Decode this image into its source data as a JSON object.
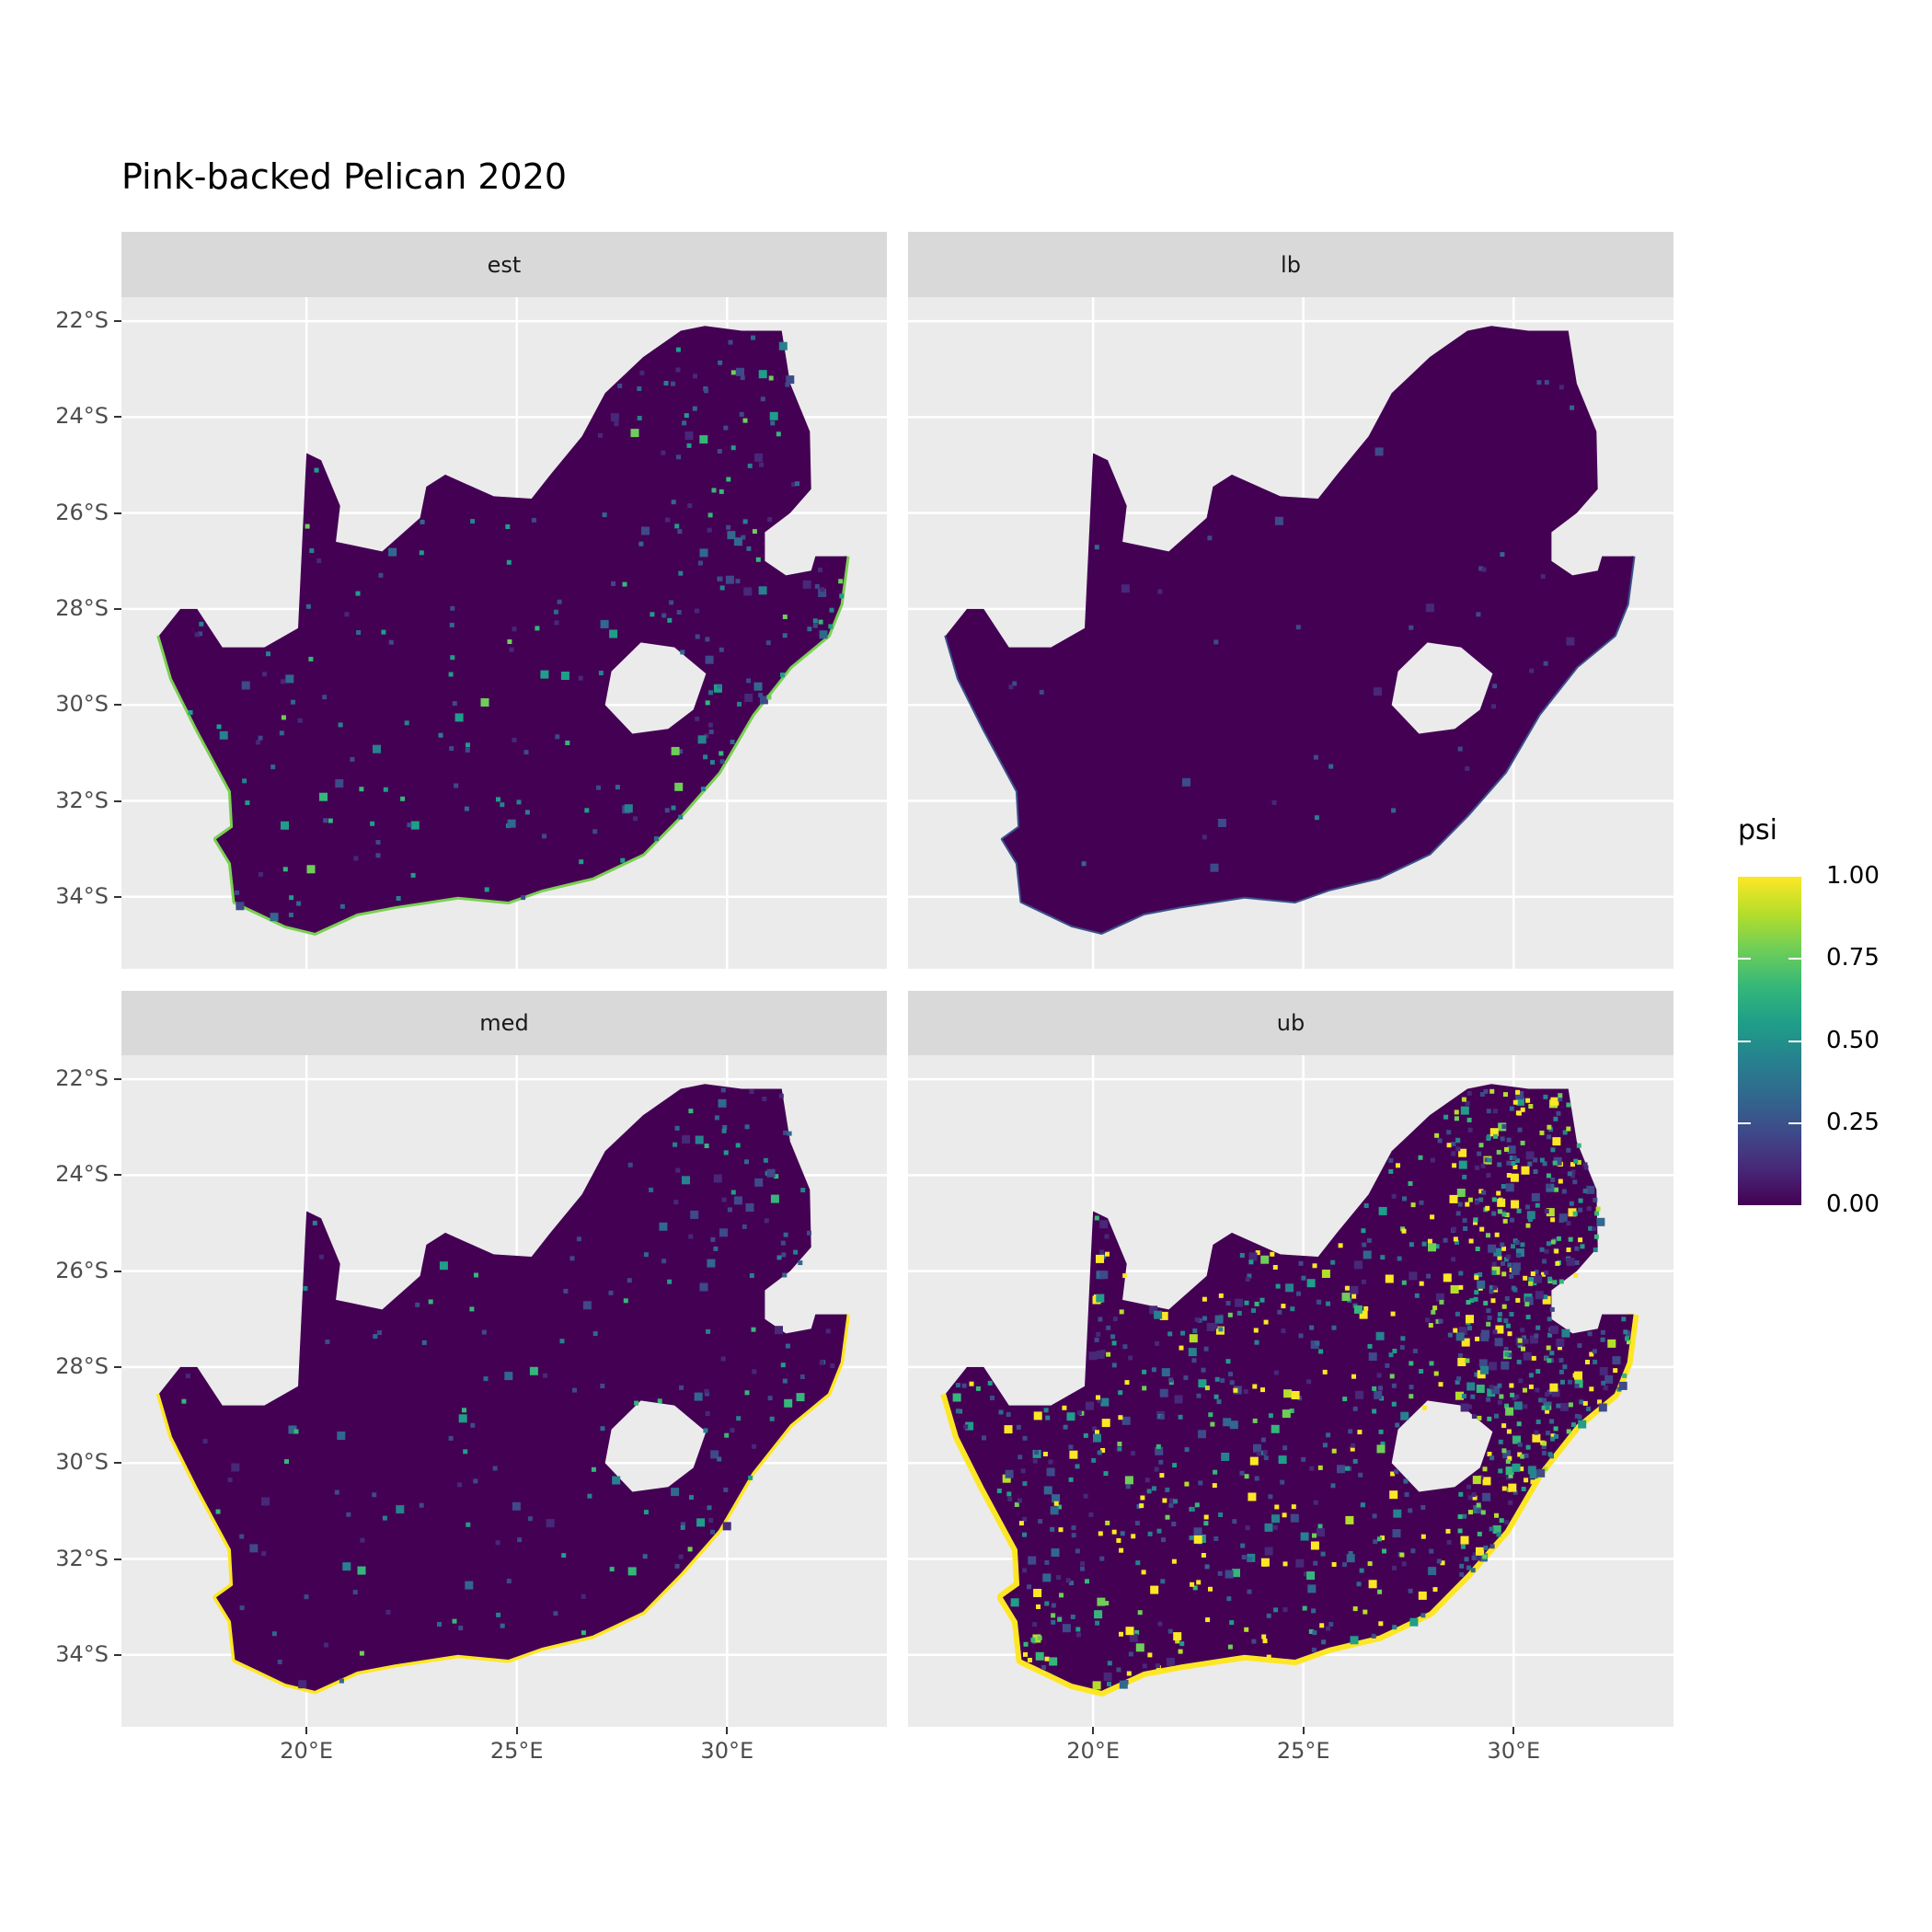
{
  "chart_data": {
    "type": "heatmap",
    "title": "Pink-backed Pelican 2020",
    "facets": [
      "est",
      "lb",
      "med",
      "ub"
    ],
    "x_ticks": [
      "20°E",
      "25°E",
      "30°E"
    ],
    "x_tick_values": [
      20,
      25,
      30
    ],
    "y_ticks": [
      "22°S",
      "24°S",
      "26°S",
      "28°S",
      "30°S",
      "32°S",
      "34°S"
    ],
    "y_tick_values": [
      -22,
      -24,
      -26,
      -28,
      -30,
      -32,
      -34
    ],
    "xlim": [
      15.6,
      33.8
    ],
    "ylim": [
      -35.5,
      -21.5
    ],
    "grid": true,
    "legend": {
      "title": "psi",
      "position": "right",
      "colormap": "viridis",
      "range": [
        0,
        1
      ],
      "ticks": [
        "0.00",
        "0.25",
        "0.50",
        "0.75",
        "1.00"
      ],
      "tick_values": [
        0,
        0.25,
        0.5,
        0.75,
        1
      ]
    },
    "colors": {
      "low": "#440154",
      "high": "#fde725",
      "panel_bg": "#ebebeb",
      "strip_bg": "#d9d9d9"
    }
  }
}
